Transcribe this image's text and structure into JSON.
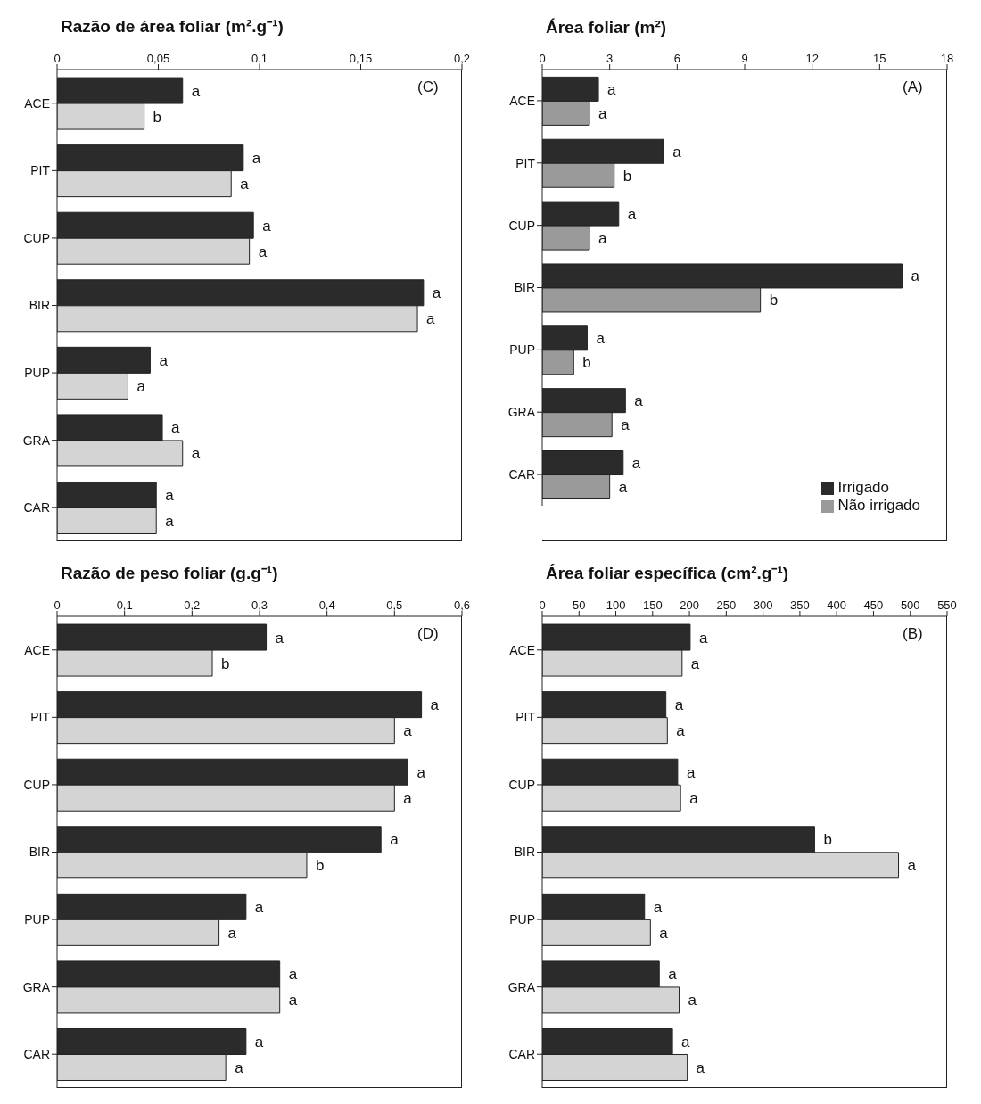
{
  "chart_data": [
    {
      "type": "bar",
      "orientation": "horizontal",
      "xlabel": "Razão de área foliar (m².g⁻¹)",
      "annotations": [
        "(C)"
      ],
      "categories": [
        "ACE",
        "PIT",
        "CUP",
        "BIR",
        "PUP",
        "GRA",
        "CAR"
      ],
      "xlim": [
        0,
        0.2
      ],
      "xticks": [
        0,
        {
          "value": 0.05,
          "label": "0,05"
        },
        {
          "value": 0.1,
          "label": "0,1"
        },
        {
          "value": 0.15,
          "label": "0,15"
        },
        {
          "value": 0.2,
          "label": "0,2"
        }
      ],
      "grid": false,
      "legend": false,
      "series": [
        {
          "color": "#2b2b2b",
          "values": [
            0.062,
            0.092,
            0.097,
            0.181,
            0.046,
            0.052,
            0.049
          ],
          "value_labels": [
            "a",
            "a",
            "a",
            "a",
            "a",
            "a",
            "a"
          ]
        },
        {
          "color": "#d4d4d4",
          "values": [
            0.043,
            0.086,
            0.095,
            0.178,
            0.035,
            0.062,
            0.049
          ],
          "value_labels": [
            "b",
            "a",
            "a",
            "a",
            "a",
            "a",
            "a"
          ]
        }
      ]
    },
    {
      "type": "bar",
      "orientation": "horizontal",
      "xlabel": "Área foliar (m²)",
      "annotations": [
        "(A)"
      ],
      "categories": [
        "ACE",
        "PIT",
        "CUP",
        "BIR",
        "PUP",
        "GRA",
        "CAR"
      ],
      "xlim": [
        0,
        18
      ],
      "xticks": [
        0,
        3,
        6,
        9,
        12,
        15,
        18
      ],
      "grid": false,
      "legend": "bottom right",
      "series": [
        {
          "name": "Irrigado",
          "color": "#2b2b2b",
          "values": [
            2.5,
            5.4,
            3.4,
            16,
            2,
            3.7,
            3.6
          ],
          "value_labels": [
            "a",
            "a",
            "a",
            "a",
            "a",
            "a",
            "a"
          ]
        },
        {
          "name": "Não irrigado",
          "color": "#9a9a9a",
          "values": [
            2.1,
            3.2,
            2.1,
            9.7,
            1.4,
            3.1,
            3
          ],
          "value_labels": [
            "a",
            "b",
            "a",
            "b",
            "b",
            "a",
            "a"
          ]
        }
      ]
    },
    {
      "type": "bar",
      "orientation": "horizontal",
      "xlabel": "Razão de peso foliar (g.g⁻¹)",
      "annotations": [
        "(D)"
      ],
      "categories": [
        "ACE",
        "PIT",
        "CUP",
        "BIR",
        "PUP",
        "GRA",
        "CAR"
      ],
      "xlim": [
        0,
        0.6
      ],
      "xticks": [
        0,
        {
          "value": 0.1,
          "label": "0,1"
        },
        {
          "value": 0.2,
          "label": "0,2"
        },
        {
          "value": 0.3,
          "label": "0,3"
        },
        {
          "value": 0.4,
          "label": "0,4"
        },
        {
          "value": 0.5,
          "label": "0,5"
        },
        {
          "value": 0.6,
          "label": "0,6"
        }
      ],
      "grid": false,
      "legend": false,
      "series": [
        {
          "color": "#2b2b2b",
          "values": [
            0.31,
            0.54,
            0.52,
            0.48,
            0.28,
            0.33,
            0.28
          ],
          "value_labels": [
            "a",
            "a",
            "a",
            "a",
            "a",
            "a",
            "a"
          ]
        },
        {
          "color": "#d4d4d4",
          "values": [
            0.23,
            0.5,
            0.5,
            0.37,
            0.24,
            0.33,
            0.25
          ],
          "value_labels": [
            "b",
            "a",
            "a",
            "b",
            "a",
            "a",
            "a"
          ]
        }
      ]
    },
    {
      "type": "bar",
      "orientation": "horizontal",
      "xlabel": "Área foliar específica (cm².g⁻¹)",
      "annotations": [
        "(B)"
      ],
      "categories": [
        "ACE",
        "PIT",
        "CUP",
        "BIR",
        "PUP",
        "GRA",
        "CAR"
      ],
      "xlim": [
        0,
        550
      ],
      "xticks": [
        0,
        50,
        100,
        150,
        200,
        250,
        300,
        350,
        400,
        450,
        500,
        550
      ],
      "grid": false,
      "legend": false,
      "series": [
        {
          "color": "#2b2b2b",
          "values": [
            201,
            168,
            184,
            370,
            139,
            159,
            177
          ],
          "value_labels": [
            "a",
            "a",
            "a",
            "b",
            "a",
            "a",
            "a"
          ]
        },
        {
          "color": "#d4d4d4",
          "values": [
            190,
            170,
            188,
            484,
            147,
            186,
            197
          ],
          "value_labels": [
            "a",
            "a",
            "a",
            "a",
            "a",
            "a",
            "a"
          ]
        }
      ]
    }
  ]
}
